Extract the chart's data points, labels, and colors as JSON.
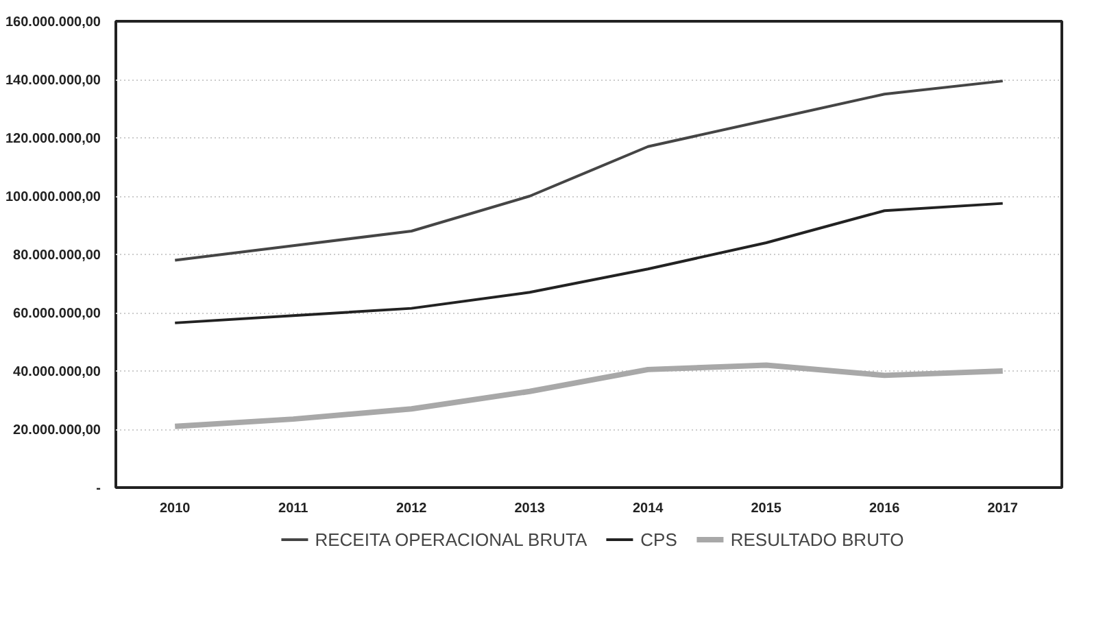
{
  "chart_data": {
    "type": "line",
    "categories": [
      "2010",
      "2011",
      "2012",
      "2013",
      "2014",
      "2015",
      "2016",
      "2017"
    ],
    "series": [
      {
        "name": "RECEITA OPERACIONAL BRUTA",
        "color": "#454545",
        "values": [
          78000000,
          83000000,
          88000000,
          100000000,
          117000000,
          126000000,
          135000000,
          139500000
        ]
      },
      {
        "name": "CPS",
        "color": "#222222",
        "values": [
          56500000,
          59000000,
          61500000,
          67000000,
          75000000,
          84000000,
          95000000,
          97500000
        ]
      },
      {
        "name": "RESULTADO BRUTO",
        "color": "#a8a8a8",
        "values": [
          21000000,
          23500000,
          27000000,
          33000000,
          40500000,
          42000000,
          38500000,
          40000000
        ]
      }
    ],
    "ylim": [
      0,
      160000000
    ],
    "yticks": [
      {
        "value": 0,
        "label": "-"
      },
      {
        "value": 20000000,
        "label": "20.000.000,00"
      },
      {
        "value": 40000000,
        "label": "40.000.000,00"
      },
      {
        "value": 60000000,
        "label": "60.000.000,00"
      },
      {
        "value": 80000000,
        "label": "80.000.000,00"
      },
      {
        "value": 100000000,
        "label": "100.000.000,00"
      },
      {
        "value": 120000000,
        "label": "120.000.000,00"
      },
      {
        "value": 140000000,
        "label": "140.000.000,00"
      },
      {
        "value": 160000000,
        "label": "160.000.000,00"
      }
    ],
    "grid": "y",
    "legend": "bottom",
    "marker": "none",
    "line_style": "solid"
  }
}
